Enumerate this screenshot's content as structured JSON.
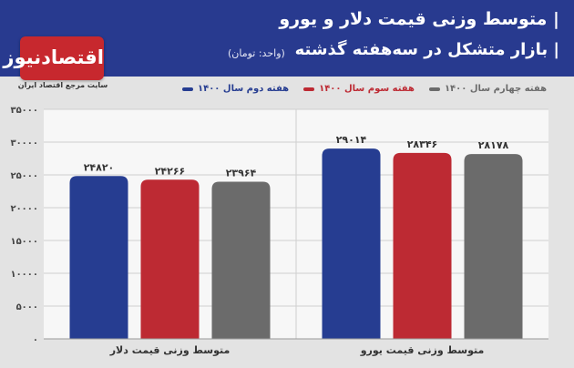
{
  "header": {
    "title_line1": "| متوسط وزنی قیمت دلار و یورو",
    "title_line2": "| بازار متشکل در سه‌هفته گذشته",
    "unit": "(واحد: تومان)",
    "bg_color": "#283a8f"
  },
  "logo": {
    "text": "اقتصادنیوز",
    "subtitle": "سایت مرجع اقتصاد ایران",
    "color": "#c7282e"
  },
  "chart_data": {
    "type": "bar",
    "categories": [
      "متوسط وزنی قیمت دلار",
      "متوسط وزنی قیمت یورو"
    ],
    "series": [
      {
        "name": "هفته دوم سال ۱۴۰۰",
        "color": "#263d91",
        "values": [
          24820,
          29014
        ],
        "labels": [
          "۲۴۸۲۰",
          "۲۹۰۱۴"
        ]
      },
      {
        "name": "هفته سوم سال ۱۴۰۰",
        "color": "#bd2a33",
        "values": [
          24266,
          28346
        ],
        "labels": [
          "۲۴۲۶۶",
          "۲۸۳۴۶"
        ]
      },
      {
        "name": "هفته چهارم سال ۱۴۰۰",
        "color": "#6b6b6b",
        "values": [
          23964,
          28178
        ],
        "labels": [
          "۲۳۹۶۴",
          "۲۸۱۷۸"
        ]
      }
    ],
    "ylim": [
      0,
      35000
    ],
    "yticks": [
      0,
      5000,
      10000,
      15000,
      20000,
      25000,
      30000,
      35000
    ],
    "ytick_labels": [
      "۰",
      "۵۰۰۰",
      "۱۰۰۰۰",
      "۱۵۰۰۰",
      "۲۰۰۰۰",
      "۲۵۰۰۰",
      "۳۰۰۰۰",
      "۳۵۰۰۰"
    ],
    "grid": true,
    "legend_position": "top-right"
  }
}
